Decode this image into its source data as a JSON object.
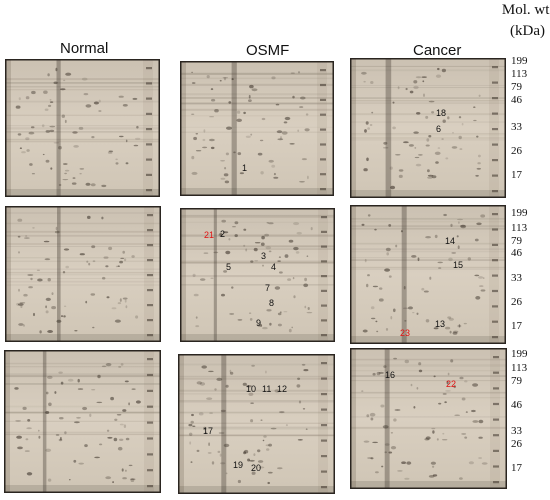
{
  "header": {
    "mol_wt_line1": "Mol. wt.",
    "mol_wt_line2": "(kDa)",
    "columns": [
      "Normal",
      "OSMF",
      "Cancer"
    ]
  },
  "mw_ladders": [
    [
      "199",
      "113",
      "79",
      "46",
      "33",
      "26",
      "17"
    ],
    [
      "199",
      "113",
      "79",
      "46",
      "33",
      "26",
      "17"
    ],
    [
      "199",
      "113",
      "79",
      "46",
      "33",
      "26",
      "17"
    ]
  ],
  "colors": {
    "gel_background": "#d9cfc0",
    "gel_border": "#2a2520",
    "label_default": "#111111",
    "label_highlight": "#e01010"
  },
  "panels": [
    {
      "row": 1,
      "column": "Normal",
      "labels": []
    },
    {
      "row": 1,
      "column": "OSMF",
      "labels": [
        {
          "text": "1",
          "highlight": false
        }
      ]
    },
    {
      "row": 1,
      "column": "Cancer",
      "labels": [
        {
          "text": "18",
          "highlight": false
        },
        {
          "text": "6",
          "highlight": false
        }
      ]
    },
    {
      "row": 2,
      "column": "Normal",
      "labels": []
    },
    {
      "row": 2,
      "column": "OSMF",
      "labels": [
        {
          "text": "21",
          "highlight": true
        },
        {
          "text": "2",
          "highlight": false
        },
        {
          "text": "3",
          "highlight": false
        },
        {
          "text": "5",
          "highlight": false
        },
        {
          "text": "4",
          "highlight": false
        },
        {
          "text": "7",
          "highlight": false
        },
        {
          "text": "8",
          "highlight": false
        },
        {
          "text": "9",
          "highlight": false
        }
      ]
    },
    {
      "row": 2,
      "column": "Cancer",
      "labels": [
        {
          "text": "14",
          "highlight": false
        },
        {
          "text": "15",
          "highlight": false
        },
        {
          "text": "23",
          "highlight": true
        },
        {
          "text": "13",
          "highlight": false
        }
      ]
    },
    {
      "row": 3,
      "column": "Normal",
      "labels": []
    },
    {
      "row": 3,
      "column": "OSMF",
      "labels": [
        {
          "text": "10",
          "highlight": false
        },
        {
          "text": "11",
          "highlight": false
        },
        {
          "text": "12",
          "highlight": false
        },
        {
          "text": "17",
          "highlight": false
        },
        {
          "text": "19",
          "highlight": false
        },
        {
          "text": "20",
          "highlight": false
        }
      ]
    },
    {
      "row": 3,
      "column": "Cancer",
      "labels": [
        {
          "text": "16",
          "highlight": false
        },
        {
          "text": "22",
          "highlight": true
        }
      ]
    }
  ]
}
